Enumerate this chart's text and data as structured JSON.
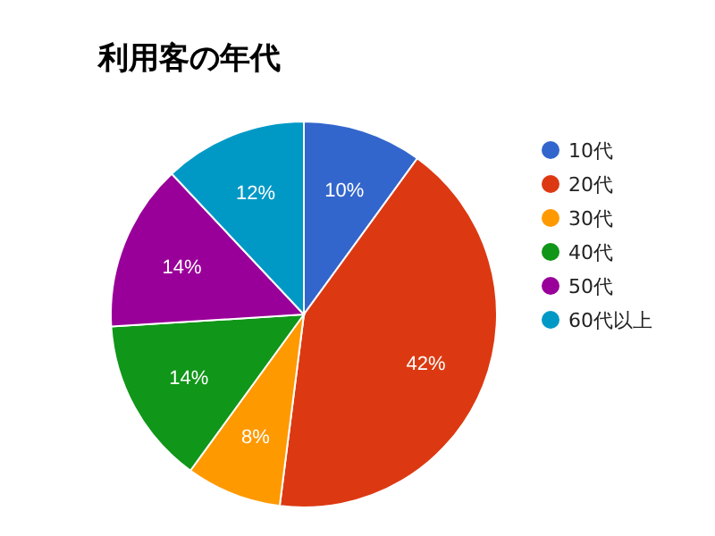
{
  "chart_data": {
    "type": "pie",
    "title": "利用客の年代",
    "categories": [
      "10代",
      "20代",
      "30代",
      "40代",
      "50代",
      "60代以上"
    ],
    "values": [
      10,
      42,
      8,
      14,
      14,
      12
    ],
    "colors": [
      "#3366cc",
      "#dc3912",
      "#ff9900",
      "#109618",
      "#990099",
      "#0099c6"
    ],
    "value_labels": [
      "10%",
      "42%",
      "8%",
      "14%",
      "14%",
      "12%"
    ],
    "legend": "right"
  }
}
